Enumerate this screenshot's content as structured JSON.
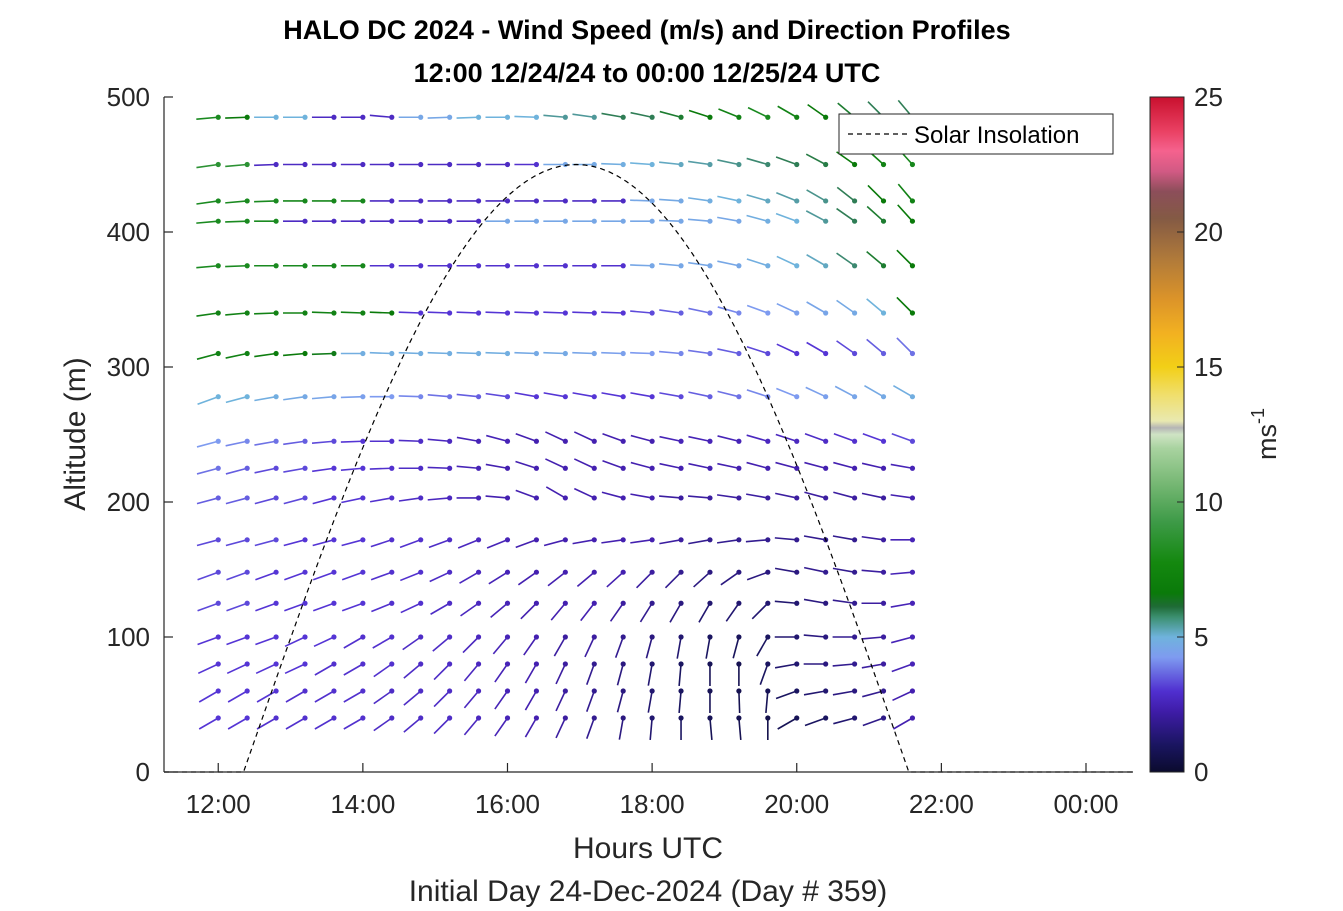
{
  "chart_data": {
    "type": "wind-barb-profile",
    "title": [
      "HALO DC 2024 - Wind Speed (m/s) and Direction Profiles",
      "12:00 12/24/24 to 00:00 12/25/24  UTC"
    ],
    "xlabel": "Hours UTC",
    "subtitle": "Initial Day 24-Dec-2024 (Day # 359)",
    "ylabel": "Altitude (m)",
    "x_ticks": [
      "12:00",
      "14:00",
      "16:00",
      "18:00",
      "20:00",
      "22:00",
      "00:00"
    ],
    "x_tick_hours": [
      12,
      14,
      16,
      18,
      20,
      22,
      24
    ],
    "xlim_hours": [
      11.25,
      24.65
    ],
    "y_ticks": [
      "0",
      "100",
      "200",
      "300",
      "400",
      "500"
    ],
    "y_tick_values": [
      0,
      100,
      200,
      300,
      400,
      500
    ],
    "ylim": [
      0,
      500
    ],
    "colorbar": {
      "label": "ms",
      "label_superscript": "-1",
      "ticks": [
        "0",
        "5",
        "10",
        "15",
        "20",
        "25"
      ],
      "tick_values": [
        0,
        5,
        10,
        15,
        20,
        25
      ],
      "range": [
        0,
        25
      ]
    },
    "legend": {
      "label": "Solar Insolation",
      "location": "top-right",
      "style": "dashed-black"
    },
    "time_hours": [
      12.0,
      12.4,
      12.8,
      13.2,
      13.6,
      14.0,
      14.4,
      14.8,
      15.2,
      15.6,
      16.0,
      16.4,
      16.8,
      17.2,
      17.6,
      18.0,
      18.4,
      18.8,
      19.2,
      19.6,
      20.0,
      20.4,
      20.8,
      21.2,
      21.6
    ],
    "altitudes_m": [
      40,
      60,
      80,
      100,
      125,
      148,
      172,
      203,
      225,
      245,
      278,
      310,
      340,
      375,
      408,
      423,
      450,
      485
    ],
    "wind_speed_ms": [
      [
        3.0,
        3.0,
        2.8,
        2.8,
        2.8,
        2.8,
        2.6,
        2.6,
        2.6,
        2.4,
        2.2,
        2.0,
        1.8,
        1.6,
        1.4,
        1.2,
        1.0,
        0.8,
        0.7,
        0.6,
        0.8,
        1.0,
        1.2,
        1.5,
        2.0
      ],
      [
        3.0,
        3.0,
        3.0,
        2.8,
        2.8,
        2.8,
        2.6,
        2.6,
        2.6,
        2.4,
        2.2,
        2.0,
        1.8,
        1.6,
        1.4,
        1.2,
        1.0,
        0.8,
        0.7,
        0.8,
        1.0,
        1.2,
        1.4,
        1.6,
        2.0
      ],
      [
        3.0,
        3.0,
        3.0,
        3.0,
        2.8,
        2.8,
        2.8,
        2.6,
        2.6,
        2.4,
        2.2,
        2.0,
        1.8,
        1.6,
        1.4,
        1.2,
        1.0,
        0.8,
        0.7,
        1.0,
        1.2,
        1.4,
        1.6,
        1.8,
        2.2
      ],
      [
        3.0,
        3.0,
        3.0,
        3.0,
        3.0,
        2.8,
        2.8,
        2.6,
        2.6,
        2.4,
        2.2,
        2.0,
        1.8,
        1.8,
        1.6,
        1.4,
        1.2,
        1.0,
        0.9,
        1.0,
        1.2,
        1.4,
        1.6,
        1.8,
        2.2
      ],
      [
        3.2,
        3.2,
        3.0,
        3.0,
        3.0,
        3.0,
        2.8,
        2.8,
        2.6,
        2.4,
        2.2,
        2.0,
        2.0,
        2.0,
        1.8,
        1.6,
        1.4,
        1.2,
        1.2,
        1.2,
        1.2,
        1.4,
        1.6,
        1.8,
        2.2
      ],
      [
        3.2,
        3.2,
        3.0,
        3.0,
        3.0,
        3.0,
        2.8,
        2.8,
        2.6,
        2.4,
        2.2,
        2.0,
        2.0,
        2.0,
        2.0,
        1.8,
        1.6,
        1.4,
        1.4,
        1.4,
        1.4,
        1.6,
        1.6,
        1.8,
        2.2
      ],
      [
        3.2,
        3.2,
        3.2,
        3.0,
        3.0,
        3.0,
        2.8,
        2.8,
        2.6,
        2.4,
        2.2,
        2.0,
        2.0,
        2.0,
        2.0,
        2.0,
        1.8,
        1.6,
        1.6,
        1.6,
        1.6,
        1.6,
        1.6,
        1.8,
        2.2
      ],
      [
        3.4,
        3.4,
        3.2,
        3.2,
        3.0,
        3.0,
        2.8,
        2.6,
        2.4,
        2.2,
        2.0,
        2.0,
        2.0,
        2.0,
        2.0,
        2.0,
        1.8,
        1.8,
        1.8,
        1.8,
        1.8,
        1.8,
        1.8,
        1.8,
        2.0
      ],
      [
        3.6,
        3.4,
        3.2,
        3.2,
        3.0,
        3.0,
        2.8,
        2.6,
        2.4,
        2.2,
        2.0,
        2.0,
        2.0,
        2.0,
        2.0,
        2.0,
        2.0,
        2.0,
        2.0,
        2.0,
        2.0,
        2.0,
        2.0,
        2.0,
        2.2
      ],
      [
        4.0,
        3.8,
        3.6,
        3.4,
        3.2,
        3.0,
        2.8,
        2.6,
        2.4,
        2.2,
        2.2,
        2.0,
        2.0,
        2.0,
        2.0,
        2.0,
        2.2,
        2.2,
        2.2,
        2.4,
        2.4,
        2.6,
        2.8,
        3.0,
        3.2
      ],
      [
        5.0,
        5.0,
        4.8,
        4.6,
        4.4,
        4.2,
        4.0,
        3.8,
        3.6,
        3.4,
        3.2,
        3.0,
        3.0,
        3.0,
        3.0,
        3.0,
        3.2,
        3.4,
        3.6,
        3.8,
        4.0,
        4.2,
        4.4,
        4.6,
        4.8
      ],
      [
        7.5,
        7.5,
        7.2,
        7.0,
        6.8,
        4.8,
        4.8,
        4.8,
        4.8,
        4.8,
        4.8,
        4.6,
        4.6,
        4.4,
        4.2,
        4.0,
        3.8,
        3.6,
        3.4,
        3.2,
        3.0,
        3.0,
        3.2,
        3.4,
        3.6
      ],
      [
        7.5,
        7.5,
        7.5,
        7.5,
        7.5,
        7.5,
        7.0,
        3.0,
        3.0,
        3.0,
        3.0,
        3.0,
        3.0,
        3.0,
        3.0,
        3.2,
        3.4,
        3.6,
        3.8,
        4.0,
        4.2,
        4.4,
        4.6,
        5.0,
        7.0
      ],
      [
        8.0,
        8.0,
        8.0,
        8.0,
        7.8,
        7.8,
        2.8,
        2.8,
        2.8,
        2.8,
        2.8,
        2.8,
        2.8,
        2.8,
        2.8,
        4.5,
        4.5,
        4.5,
        4.5,
        4.8,
        5.0,
        5.2,
        5.8,
        6.5,
        7.0
      ],
      [
        8.0,
        8.0,
        8.0,
        2.5,
        2.5,
        2.5,
        2.5,
        2.5,
        2.5,
        2.5,
        4.5,
        4.5,
        4.5,
        4.5,
        4.5,
        4.5,
        4.5,
        4.5,
        4.5,
        4.8,
        5.0,
        5.5,
        6.0,
        6.5,
        7.0
      ],
      [
        8.0,
        8.0,
        8.0,
        7.8,
        7.8,
        7.8,
        2.5,
        2.5,
        2.5,
        2.5,
        2.5,
        2.5,
        2.5,
        2.5,
        2.5,
        4.5,
        4.6,
        4.8,
        5.0,
        5.2,
        5.4,
        5.6,
        6.0,
        7.0,
        7.5
      ],
      [
        8.5,
        8.5,
        2.5,
        2.5,
        2.5,
        2.5,
        2.5,
        2.5,
        2.5,
        2.5,
        2.5,
        2.8,
        4.5,
        4.6,
        4.8,
        5.0,
        5.2,
        5.4,
        5.6,
        5.8,
        6.0,
        6.2,
        7.0,
        7.5,
        7.8
      ],
      [
        8.0,
        7.0,
        5.0,
        5.0,
        2.5,
        2.5,
        2.5,
        4.5,
        4.5,
        5.0,
        5.0,
        5.0,
        5.5,
        5.5,
        6.0,
        6.0,
        6.5,
        7.0,
        7.5,
        8.0,
        7.5,
        7.0,
        6.5,
        6.0,
        6.0
      ]
    ],
    "wind_direction_deg": [
      [
        240,
        240,
        240,
        240,
        240,
        240,
        235,
        230,
        225,
        220,
        215,
        210,
        205,
        200,
        190,
        185,
        180,
        175,
        175,
        180,
        240,
        250,
        255,
        250,
        240
      ],
      [
        240,
        240,
        240,
        240,
        240,
        240,
        235,
        230,
        225,
        220,
        215,
        210,
        205,
        200,
        195,
        190,
        185,
        180,
        178,
        185,
        250,
        260,
        260,
        255,
        245
      ],
      [
        245,
        245,
        245,
        245,
        240,
        240,
        235,
        230,
        225,
        220,
        215,
        210,
        205,
        200,
        195,
        190,
        185,
        180,
        180,
        200,
        260,
        270,
        265,
        260,
        250
      ],
      [
        250,
        250,
        250,
        245,
        245,
        240,
        240,
        235,
        230,
        225,
        220,
        215,
        210,
        205,
        200,
        195,
        190,
        190,
        195,
        210,
        270,
        275,
        270,
        265,
        255
      ],
      [
        250,
        250,
        250,
        250,
        250,
        250,
        248,
        245,
        240,
        235,
        230,
        225,
        220,
        218,
        215,
        212,
        210,
        210,
        215,
        225,
        275,
        280,
        278,
        270,
        260
      ],
      [
        250,
        250,
        250,
        250,
        250,
        250,
        250,
        248,
        245,
        240,
        238,
        235,
        232,
        230,
        228,
        225,
        225,
        228,
        235,
        250,
        280,
        282,
        280,
        275,
        265
      ],
      [
        255,
        255,
        255,
        255,
        255,
        255,
        252,
        250,
        250,
        248,
        248,
        250,
        255,
        260,
        262,
        262,
        260,
        260,
        262,
        265,
        275,
        280,
        280,
        278,
        270
      ],
      [
        255,
        255,
        255,
        255,
        255,
        258,
        260,
        262,
        265,
        270,
        275,
        290,
        300,
        295,
        285,
        280,
        275,
        275,
        278,
        280,
        282,
        285,
        285,
        282,
        278
      ],
      [
        255,
        255,
        258,
        260,
        262,
        265,
        268,
        270,
        272,
        275,
        280,
        288,
        295,
        295,
        290,
        285,
        282,
        282,
        282,
        285,
        285,
        285,
        285,
        283,
        280
      ],
      [
        255,
        258,
        260,
        262,
        265,
        268,
        270,
        272,
        275,
        280,
        285,
        290,
        295,
        295,
        290,
        285,
        282,
        282,
        284,
        286,
        288,
        290,
        290,
        290,
        290
      ],
      [
        250,
        255,
        260,
        262,
        265,
        268,
        270,
        272,
        275,
        276,
        278,
        280,
        280,
        280,
        280,
        280,
        280,
        282,
        284,
        288,
        292,
        295,
        298,
        300,
        300
      ],
      [
        255,
        258,
        262,
        265,
        268,
        270,
        272,
        272,
        272,
        272,
        272,
        272,
        272,
        272,
        272,
        272,
        275,
        278,
        282,
        288,
        295,
        300,
        305,
        310,
        315
      ],
      [
        262,
        265,
        268,
        270,
        272,
        272,
        272,
        272,
        272,
        272,
        272,
        272,
        272,
        272,
        272,
        275,
        278,
        282,
        286,
        290,
        295,
        300,
        305,
        310,
        315
      ],
      [
        265,
        268,
        270,
        270,
        270,
        270,
        270,
        270,
        270,
        270,
        270,
        270,
        270,
        270,
        270,
        272,
        275,
        278,
        282,
        288,
        295,
        300,
        305,
        310,
        315
      ],
      [
        265,
        268,
        270,
        270,
        270,
        270,
        270,
        270,
        270,
        270,
        270,
        270,
        270,
        270,
        270,
        270,
        272,
        275,
        280,
        285,
        290,
        298,
        305,
        312,
        318
      ],
      [
        262,
        265,
        268,
        270,
        270,
        270,
        270,
        270,
        270,
        270,
        270,
        270,
        270,
        270,
        270,
        272,
        274,
        278,
        282,
        286,
        292,
        300,
        308,
        315,
        320
      ],
      [
        262,
        265,
        268,
        270,
        270,
        270,
        270,
        270,
        270,
        270,
        270,
        270,
        270,
        270,
        272,
        274,
        276,
        278,
        282,
        286,
        290,
        298,
        305,
        312,
        318
      ],
      [
        265,
        268,
        270,
        270,
        270,
        270,
        275,
        270,
        268,
        268,
        270,
        272,
        275,
        278,
        280,
        282,
        285,
        288,
        292,
        296,
        300,
        305,
        310,
        315,
        320
      ]
    ],
    "solar_insolation": {
      "start_hour": 12.35,
      "peak_hour": 16.95,
      "end_hour": 21.55,
      "peak_altitude_m": 450
    }
  }
}
